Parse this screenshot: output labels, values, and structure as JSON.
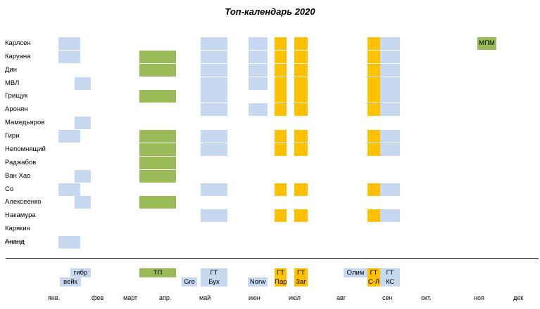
{
  "title": "Топ-календарь 2020",
  "colors": {
    "blue": "#c6d9f0",
    "green": "#9bbb59",
    "orange": "#ffc000"
  },
  "events": {
    "A": {
      "color": "blue"
    },
    "B": {
      "color": "blue"
    },
    "C": {
      "color": "green"
    },
    "D": {
      "color": "blue"
    },
    "E": {
      "color": "blue"
    },
    "F": {
      "color": "orange"
    },
    "G": {
      "color": "orange"
    },
    "H": {
      "color": "orange"
    },
    "I": {
      "color": "blue"
    },
    "J": {
      "color": "green",
      "label": "МПМ"
    }
  },
  "players": [
    {
      "name": "Карлсен",
      "events": [
        "A",
        "D",
        "E",
        "F",
        "G",
        "H",
        "I",
        "J"
      ]
    },
    {
      "name": "Каруана",
      "events": [
        "A",
        "C",
        "D",
        "E",
        "F",
        "G",
        "H",
        "I"
      ]
    },
    {
      "name": "Дин",
      "events": [
        "C",
        "D",
        "E",
        "F",
        "G",
        "H",
        "I"
      ]
    },
    {
      "name": "МВЛ",
      "events": [
        "B",
        "D",
        "E",
        "F",
        "G",
        "H",
        "I"
      ]
    },
    {
      "name": "Грищук",
      "events": [
        "C",
        "D",
        "F",
        "G",
        "H",
        "I"
      ]
    },
    {
      "name": "Аронян",
      "events": [
        "D",
        "E",
        "F",
        "G",
        "H",
        "I"
      ]
    },
    {
      "name": "Мамедьяров",
      "events": [
        "B"
      ]
    },
    {
      "name": "Гири",
      "events": [
        "A",
        "C",
        "D",
        "F",
        "G",
        "H",
        "I"
      ]
    },
    {
      "name": "Непомнящий",
      "events": [
        "C",
        "D",
        "F",
        "G",
        "H",
        "I"
      ]
    },
    {
      "name": "Раджабов",
      "events": [
        "C"
      ]
    },
    {
      "name": "Ван Хао",
      "events": [
        "B",
        "C"
      ]
    },
    {
      "name": "Со",
      "events": [
        "A",
        "D",
        "F",
        "G",
        "H",
        "I"
      ]
    },
    {
      "name": "Алексеенко",
      "events": [
        "B",
        "C"
      ]
    },
    {
      "name": "Накамура",
      "events": [
        "D",
        "F",
        "G",
        "H",
        "I"
      ]
    },
    {
      "name": "Карякин",
      "events": []
    },
    {
      "name": "Ананд",
      "events": [
        "A"
      ],
      "struck": true
    }
  ],
  "legend": {
    "gibr": "гибр",
    "wijk": "вейк",
    "tp": "ТП",
    "gre": "Gre",
    "gt_bukh": "ГТ Бух",
    "norw": "Norw",
    "gt_par": "ГТ Пар",
    "gt_zag": "ГТ Заг",
    "olim": "Олим",
    "gt_sl": "ГТ С-Л",
    "gt_ks": "ГТ КС"
  },
  "months": [
    "янв.",
    "фев",
    "март",
    "апр.",
    "май",
    "июн",
    "июл",
    "авг",
    "сен",
    "окт.",
    "ноя",
    "дек"
  ]
}
